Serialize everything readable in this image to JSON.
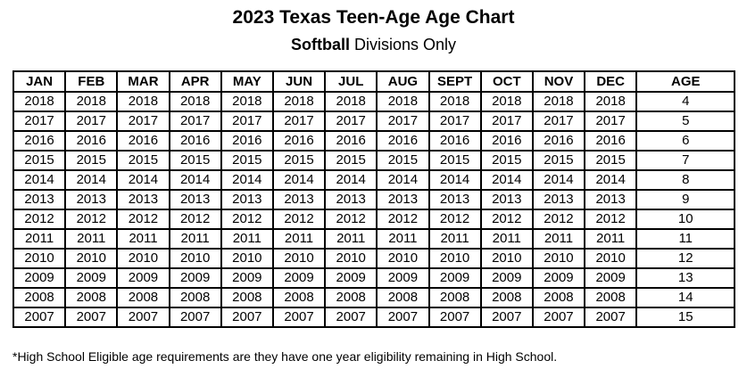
{
  "header": {
    "title": "2023 Texas Teen-Age Age Chart",
    "subtitle_bold": "Softball",
    "subtitle_rest": " Divisions Only"
  },
  "table": {
    "headers": [
      "JAN",
      "FEB",
      "MAR",
      "APR",
      "MAY",
      "JUN",
      "JUL",
      "AUG",
      "SEPT",
      "OCT",
      "NOV",
      "DEC",
      "AGE"
    ],
    "rows": [
      {
        "cells": [
          "2018",
          "2018",
          "2018",
          "2018",
          "2018",
          "2018",
          "2018",
          "2018",
          "2018",
          "2018",
          "2018",
          "2018"
        ],
        "age": "4"
      },
      {
        "cells": [
          "2017",
          "2017",
          "2017",
          "2017",
          "2017",
          "2017",
          "2017",
          "2017",
          "2017",
          "2017",
          "2017",
          "2017"
        ],
        "age": "5"
      },
      {
        "cells": [
          "2016",
          "2016",
          "2016",
          "2016",
          "2016",
          "2016",
          "2016",
          "2016",
          "2016",
          "2016",
          "2016",
          "2016"
        ],
        "age": "6"
      },
      {
        "cells": [
          "2015",
          "2015",
          "2015",
          "2015",
          "2015",
          "2015",
          "2015",
          "2015",
          "2015",
          "2015",
          "2015",
          "2015"
        ],
        "age": "7"
      },
      {
        "cells": [
          "2014",
          "2014",
          "2014",
          "2014",
          "2014",
          "2014",
          "2014",
          "2014",
          "2014",
          "2014",
          "2014",
          "2014"
        ],
        "age": "8"
      },
      {
        "cells": [
          "2013",
          "2013",
          "2013",
          "2013",
          "2013",
          "2013",
          "2013",
          "2013",
          "2013",
          "2013",
          "2013",
          "2013"
        ],
        "age": "9"
      },
      {
        "cells": [
          "2012",
          "2012",
          "2012",
          "2012",
          "2012",
          "2012",
          "2012",
          "2012",
          "2012",
          "2012",
          "2012",
          "2012"
        ],
        "age": "10"
      },
      {
        "cells": [
          "2011",
          "2011",
          "2011",
          "2011",
          "2011",
          "2011",
          "2011",
          "2011",
          "2011",
          "2011",
          "2011",
          "2011"
        ],
        "age": "11"
      },
      {
        "cells": [
          "2010",
          "2010",
          "2010",
          "2010",
          "2010",
          "2010",
          "2010",
          "2010",
          "2010",
          "2010",
          "2010",
          "2010"
        ],
        "age": "12"
      },
      {
        "cells": [
          "2009",
          "2009",
          "2009",
          "2009",
          "2009",
          "2009",
          "2009",
          "2009",
          "2009",
          "2009",
          "2009",
          "2009"
        ],
        "age": "13"
      },
      {
        "cells": [
          "2008",
          "2008",
          "2008",
          "2008",
          "2008",
          "2008",
          "2008",
          "2008",
          "2008",
          "2008",
          "2008",
          "2008"
        ],
        "age": "14"
      },
      {
        "cells": [
          "2007",
          "2007",
          "2007",
          "2007",
          "2007",
          "2007",
          "2007",
          "2007",
          "2007",
          "2007",
          "2007",
          "2007"
        ],
        "age": "15"
      }
    ]
  },
  "footnote": "*High School Eligible age requirements are they have one year eligibility remaining in High School.",
  "colors": {
    "text": "#000000",
    "border": "#000000",
    "background": "#ffffff"
  }
}
